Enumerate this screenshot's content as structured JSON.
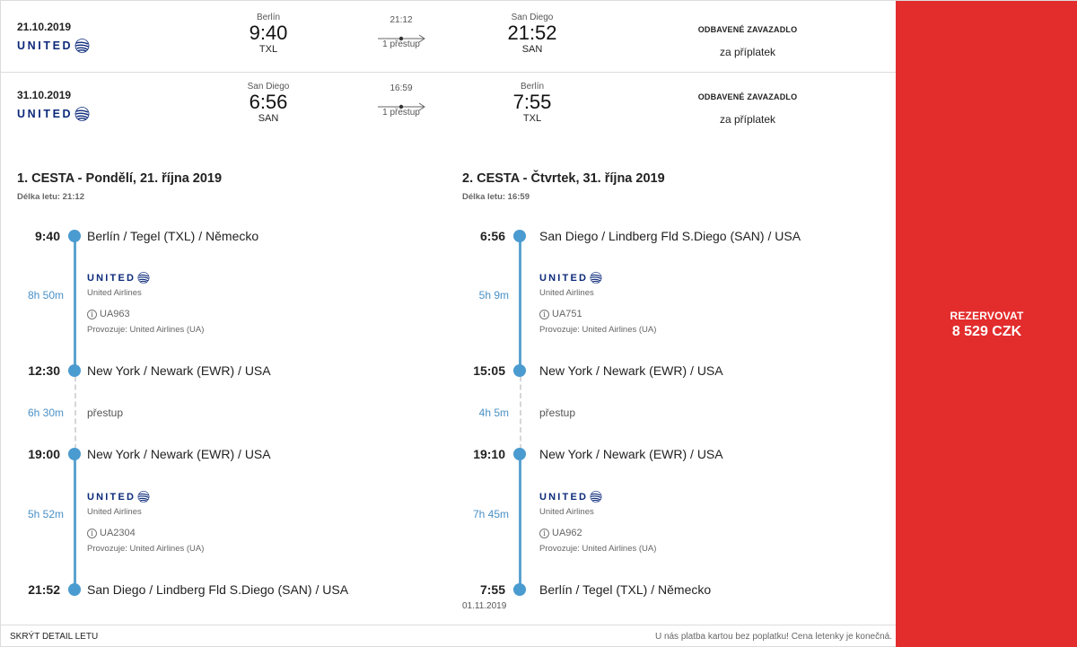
{
  "summary": [
    {
      "date": "21.10.2019",
      "airline_logo": "UNITED",
      "dep_city": "Berlín",
      "dep_time": "9:40",
      "dep_code": "TXL",
      "duration": "21:12",
      "stops": "1 přestup",
      "arr_city": "San Diego",
      "arr_time": "21:52",
      "arr_code": "SAN",
      "baggage_title": "ODBAVENÉ ZAVAZADLO",
      "baggage_note": "za příplatek"
    },
    {
      "date": "31.10.2019",
      "airline_logo": "UNITED",
      "dep_city": "San Diego",
      "dep_time": "6:56",
      "dep_code": "SAN",
      "duration": "16:59",
      "stops": "1 přestup",
      "arr_city": "Berlín",
      "arr_time": "7:55",
      "arr_code": "TXL",
      "baggage_title": "ODBAVENÉ ZAVAZADLO",
      "baggage_note": "za příplatek"
    }
  ],
  "legs": [
    {
      "title": "1. CESTA - Pondělí, 21. října 2019",
      "duration_label": "Délka letu: 21:12",
      "s1": {
        "dep_time": "9:40",
        "dep_place": "Berlín / Tegel (TXL) / Německo",
        "duration": "8h 50m",
        "logo": "UNITED",
        "airline": "United Airlines",
        "info_icon": "i",
        "flight": "UA963",
        "operated": "Provozuje: United Airlines (UA)",
        "arr_time": "12:30",
        "arr_place": "New York / Newark (EWR) / USA"
      },
      "transfer": {
        "duration": "6h 30m",
        "label": "přestup"
      },
      "s2": {
        "dep_time": "19:00",
        "dep_place": "New York / Newark (EWR) / USA",
        "duration": "5h 52m",
        "logo": "UNITED",
        "airline": "United Airlines",
        "info_icon": "i",
        "flight": "UA2304",
        "operated": "Provozuje: United Airlines (UA)",
        "arr_time": "21:52",
        "arr_place": "San Diego / Lindberg Fld S.Diego (SAN) / USA"
      },
      "next_date": ""
    },
    {
      "title": "2. CESTA - Čtvrtek, 31. října 2019",
      "duration_label": "Délka letu: 16:59",
      "s1": {
        "dep_time": "6:56",
        "dep_place": "San Diego / Lindberg Fld S.Diego (SAN) / USA",
        "duration": "5h 9m",
        "logo": "UNITED",
        "airline": "United Airlines",
        "info_icon": "i",
        "flight": "UA751",
        "operated": "Provozuje: United Airlines (UA)",
        "arr_time": "15:05",
        "arr_place": "New York / Newark (EWR) / USA"
      },
      "transfer": {
        "duration": "4h 5m",
        "label": "přestup"
      },
      "s2": {
        "dep_time": "19:10",
        "dep_place": "New York / Newark (EWR) / USA",
        "duration": "7h 45m",
        "logo": "UNITED",
        "airline": "United Airlines",
        "info_icon": "i",
        "flight": "UA962",
        "operated": "Provozuje: United Airlines (UA)",
        "arr_time": "7:55",
        "arr_place": "Berlín / Tegel (TXL) / Německo"
      },
      "next_date": "01.11.2019"
    }
  ],
  "booking": {
    "button_label": "REZERVOVAT",
    "price": "8 529 CZK",
    "color": "#e32d2d"
  },
  "footer": {
    "hide_detail": "SKRÝT DETAIL LETU",
    "note": "U nás platba kartou bez poplatku! Cena letenky je konečná."
  },
  "colors": {
    "timeline": "#4a9bd0",
    "duration_text": "#4a90c6",
    "united_blue": "#0c2a7a"
  }
}
